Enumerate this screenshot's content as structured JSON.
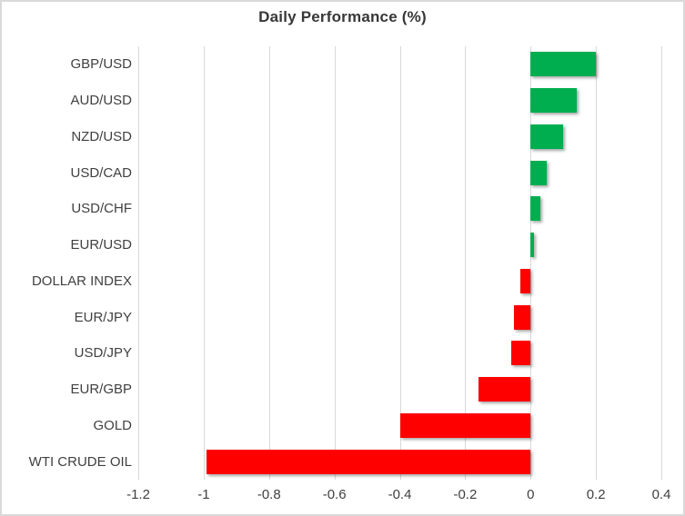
{
  "chart_data": {
    "type": "bar",
    "orientation": "horizontal",
    "title": "Daily Performance (%)",
    "categories": [
      "GBP/USD",
      "AUD/USD",
      "NZD/USD",
      "USD/CAD",
      "USD/CHF",
      "EUR/USD",
      "DOLLAR INDEX",
      "EUR/JPY",
      "USD/JPY",
      "EUR/GBP",
      "GOLD",
      "WTI CRUDE OIL"
    ],
    "values": [
      0.2,
      0.14,
      0.1,
      0.05,
      0.03,
      0.01,
      -0.03,
      -0.05,
      -0.06,
      -0.16,
      -0.4,
      -0.99
    ],
    "xlim": [
      -1.2,
      0.4
    ],
    "xticks": [
      "-1.2",
      "-1",
      "-0.8",
      "-0.6",
      "-0.4",
      "-0.2",
      "0",
      "0.2",
      "0.4"
    ],
    "xlabel": "",
    "ylabel": "",
    "grid": "vertical-gridlines-on",
    "legend": "none",
    "colors": {
      "positive_bar": "#00AE50",
      "negative_bar": "#FF0000",
      "gridline": "#D9D9D9",
      "title_text": "#383838",
      "axis_text": "#404040",
      "frame_border": "#D9D9D9",
      "background": "#FFFFFF"
    }
  }
}
